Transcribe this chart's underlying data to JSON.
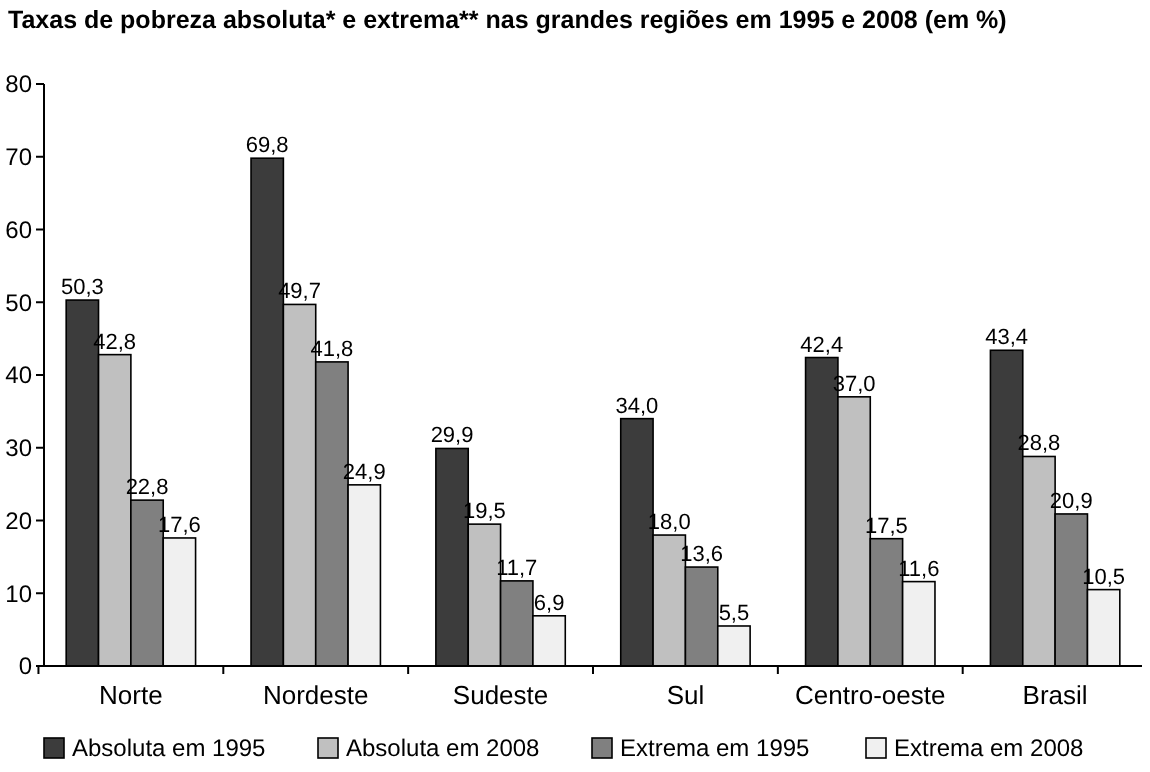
{
  "chart_data": {
    "type": "bar",
    "title": "Taxas de pobreza absoluta* e extrema** nas grandes regiões em 1995 e 2008 (em %)",
    "categories": [
      "Norte",
      "Nordeste",
      "Sudeste",
      "Sul",
      "Centro-oeste",
      "Brasil"
    ],
    "series": [
      {
        "name": "Absoluta em 1995",
        "color": "#3c3c3c",
        "values": [
          50.3,
          69.8,
          29.9,
          34.0,
          42.4,
          43.4
        ],
        "value_labels": [
          "50,3",
          "69,8",
          "29,9",
          "34,0",
          "42,4",
          "43,4"
        ]
      },
      {
        "name": "Absoluta em 2008",
        "color": "#c0c0c0",
        "values": [
          42.8,
          49.7,
          19.5,
          18.0,
          37.0,
          28.8
        ],
        "value_labels": [
          "42,8",
          "49,7",
          "19,5",
          "18,0",
          "37,0",
          "28,8"
        ]
      },
      {
        "name": "Extrema em 1995",
        "color": "#808080",
        "values": [
          22.8,
          41.8,
          11.7,
          13.6,
          17.5,
          20.9
        ],
        "value_labels": [
          "22,8",
          "41,8",
          "11,7",
          "13,6",
          "17,5",
          "20,9"
        ]
      },
      {
        "name": "Extrema em 2008",
        "color": "#f0f0f0",
        "values": [
          17.6,
          24.9,
          6.9,
          5.5,
          11.6,
          10.5
        ],
        "value_labels": [
          "17,6",
          "24,9",
          "6,9",
          "5,5",
          "11,6",
          "10,5"
        ]
      }
    ],
    "ylim": [
      0,
      80
    ],
    "yticks": [
      0,
      10,
      20,
      30,
      40,
      50,
      60,
      70,
      80
    ],
    "grid": false,
    "legend": "bottom"
  }
}
